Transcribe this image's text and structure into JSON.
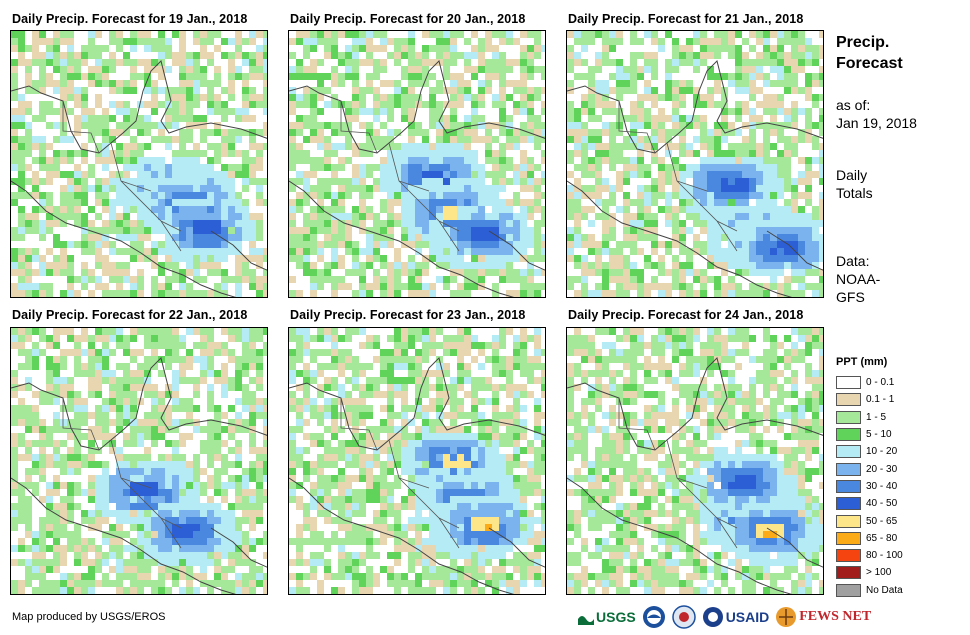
{
  "panels": [
    {
      "title": "Daily Precip. Forecast for 19 Jan., 2018"
    },
    {
      "title": "Daily Precip. Forecast for 20 Jan., 2018"
    },
    {
      "title": "Daily Precip. Forecast for 21 Jan., 2018"
    },
    {
      "title": "Daily Precip. Forecast for 22 Jan., 2018"
    },
    {
      "title": "Daily Precip. Forecast for 23 Jan., 2018"
    },
    {
      "title": "Daily Precip. Forecast for 24 Jan., 2018"
    }
  ],
  "side": {
    "heading_line1": "Precip.",
    "heading_line2": "Forecast",
    "asof_line1": "as of:",
    "asof_line2": "Jan 19, 2018",
    "totals_line1": "Daily",
    "totals_line2": "Totals",
    "data_line1": "Data:",
    "data_line2": "NOAA-",
    "data_line3": "GFS"
  },
  "legend": {
    "title": "PPT (mm)",
    "items": [
      {
        "label": "0 - 0.1",
        "color": "#ffffff"
      },
      {
        "label": "0.1 - 1",
        "color": "#e8d6b0"
      },
      {
        "label": "1 - 5",
        "color": "#a6e89a"
      },
      {
        "label": "5 - 10",
        "color": "#5fd35a"
      },
      {
        "label": "10 - 20",
        "color": "#b4ebf5"
      },
      {
        "label": "20 - 30",
        "color": "#7ab3ee"
      },
      {
        "label": "30 - 40",
        "color": "#4a88e0"
      },
      {
        "label": "40 - 50",
        "color": "#2c5fd6"
      },
      {
        "label": "50 - 65",
        "color": "#fde58a"
      },
      {
        "label": "65 - 80",
        "color": "#fbab17"
      },
      {
        "label": "80 - 100",
        "color": "#f5440f"
      },
      {
        "label": "> 100",
        "color": "#a31c1c"
      },
      {
        "label": "No Data",
        "color": "#a0a0a0"
      }
    ]
  },
  "footer": {
    "credit": "Map produced by USGS/EROS",
    "logo_usgs": "USGS",
    "logo_usaid": "USAID",
    "logo_fews": "FEWS NET"
  }
}
